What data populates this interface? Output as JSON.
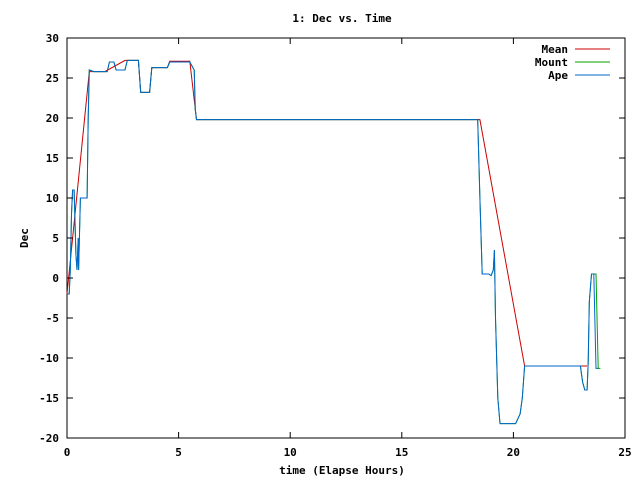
{
  "chart_data": {
    "type": "line",
    "title": "1: Dec vs. Time",
    "xlabel": "time (Elapse Hours)",
    "ylabel": "Dec",
    "xlim": [
      0,
      25
    ],
    "ylim": [
      -20,
      30
    ],
    "xticks": [
      0,
      5,
      10,
      15,
      20,
      25
    ],
    "yticks": [
      30,
      25,
      20,
      15,
      10,
      5,
      0,
      -5,
      -10,
      -15,
      -20
    ],
    "grid": false,
    "legend_position": "top-right",
    "series": [
      {
        "name": "Mean",
        "color": "#cc0000",
        "points": [
          [
            0,
            -2
          ],
          [
            1.0,
            25.8
          ],
          [
            1.7,
            25.8
          ],
          [
            2.6,
            27.2
          ],
          [
            3.2,
            27.2
          ],
          [
            3.3,
            23.2
          ],
          [
            3.7,
            23.2
          ],
          [
            3.8,
            26.3
          ],
          [
            4.5,
            26.3
          ],
          [
            4.6,
            27.1
          ],
          [
            5.5,
            27.1
          ],
          [
            5.8,
            19.8
          ],
          [
            16.9,
            19.8
          ],
          [
            17.0,
            19.8
          ],
          [
            18.4,
            19.8
          ],
          [
            18.5,
            19.8
          ],
          [
            20.5,
            -11.0
          ],
          [
            23.0,
            -11.0
          ],
          [
            23.3,
            -11.0
          ]
        ]
      },
      {
        "name": "Mount",
        "color": "#00a000",
        "points": [
          [
            0,
            -2
          ],
          [
            0.1,
            -2
          ],
          [
            0.15,
            1
          ],
          [
            0.2,
            8
          ],
          [
            0.25,
            11
          ],
          [
            0.32,
            11
          ],
          [
            0.35,
            8
          ],
          [
            0.4,
            3
          ],
          [
            0.45,
            1
          ],
          [
            0.5,
            5
          ],
          [
            0.52,
            1
          ],
          [
            0.6,
            10
          ],
          [
            0.9,
            10
          ],
          [
            0.95,
            20
          ],
          [
            1.0,
            26
          ],
          [
            1.2,
            25.8
          ],
          [
            1.8,
            25.8
          ],
          [
            1.9,
            27
          ],
          [
            2.1,
            27
          ],
          [
            2.2,
            26
          ],
          [
            2.6,
            26
          ],
          [
            2.7,
            27.2
          ],
          [
            3.1,
            27.2
          ],
          [
            3.2,
            27.2
          ],
          [
            3.3,
            23.2
          ],
          [
            3.7,
            23.2
          ],
          [
            3.8,
            26.3
          ],
          [
            4.5,
            26.3
          ],
          [
            4.6,
            27.0
          ],
          [
            5.5,
            27.0
          ],
          [
            5.7,
            26
          ],
          [
            5.75,
            21
          ],
          [
            5.8,
            19.8
          ],
          [
            18.4,
            19.8
          ],
          [
            18.5,
            10
          ],
          [
            18.6,
            0.5
          ],
          [
            18.9,
            0.5
          ],
          [
            19.0,
            0.3
          ],
          [
            19.1,
            1
          ],
          [
            19.15,
            3.5
          ],
          [
            19.2,
            -5
          ],
          [
            19.3,
            -15
          ],
          [
            19.4,
            -18.2
          ],
          [
            20.1,
            -18.2
          ],
          [
            20.3,
            -17
          ],
          [
            20.4,
            -15
          ],
          [
            20.5,
            -11
          ],
          [
            23.0,
            -11
          ],
          [
            23.1,
            -13
          ],
          [
            23.2,
            -14
          ],
          [
            23.3,
            -14
          ],
          [
            23.35,
            -10.5
          ],
          [
            23.4,
            -3
          ],
          [
            23.5,
            0.5
          ],
          [
            23.7,
            0.5
          ],
          [
            23.8,
            -11.3
          ],
          [
            23.9,
            -11.3
          ]
        ]
      },
      {
        "name": "Ape",
        "color": "#0066cc",
        "points": [
          [
            0,
            -2
          ],
          [
            0.1,
            -2
          ],
          [
            0.15,
            1
          ],
          [
            0.2,
            8
          ],
          [
            0.25,
            11
          ],
          [
            0.32,
            11
          ],
          [
            0.35,
            8
          ],
          [
            0.4,
            3
          ],
          [
            0.45,
            1
          ],
          [
            0.5,
            5
          ],
          [
            0.52,
            1
          ],
          [
            0.6,
            10
          ],
          [
            0.9,
            10
          ],
          [
            0.95,
            20
          ],
          [
            1.0,
            26
          ],
          [
            1.2,
            25.8
          ],
          [
            1.8,
            25.8
          ],
          [
            1.9,
            27
          ],
          [
            2.1,
            27
          ],
          [
            2.2,
            26
          ],
          [
            2.6,
            26
          ],
          [
            2.7,
            27.2
          ],
          [
            3.1,
            27.2
          ],
          [
            3.2,
            27.2
          ],
          [
            3.3,
            23.2
          ],
          [
            3.7,
            23.2
          ],
          [
            3.8,
            26.3
          ],
          [
            4.5,
            26.3
          ],
          [
            4.6,
            27.0
          ],
          [
            5.5,
            27.0
          ],
          [
            5.7,
            26
          ],
          [
            5.75,
            21
          ],
          [
            5.8,
            19.8
          ],
          [
            18.4,
            19.8
          ],
          [
            18.5,
            10
          ],
          [
            18.6,
            0.5
          ],
          [
            18.9,
            0.5
          ],
          [
            19.0,
            0.3
          ],
          [
            19.1,
            1
          ],
          [
            19.15,
            3.5
          ],
          [
            19.2,
            -5
          ],
          [
            19.3,
            -15
          ],
          [
            19.4,
            -18.2
          ],
          [
            20.1,
            -18.2
          ],
          [
            20.3,
            -17
          ],
          [
            20.4,
            -15
          ],
          [
            20.5,
            -11
          ],
          [
            23.0,
            -11
          ],
          [
            23.1,
            -13
          ],
          [
            23.2,
            -14
          ],
          [
            23.3,
            -14
          ],
          [
            23.35,
            -10.5
          ],
          [
            23.4,
            -3
          ],
          [
            23.5,
            0.5
          ],
          [
            23.6,
            0.5
          ],
          [
            23.7,
            -11.3
          ],
          [
            23.8,
            -11.3
          ]
        ]
      }
    ]
  }
}
